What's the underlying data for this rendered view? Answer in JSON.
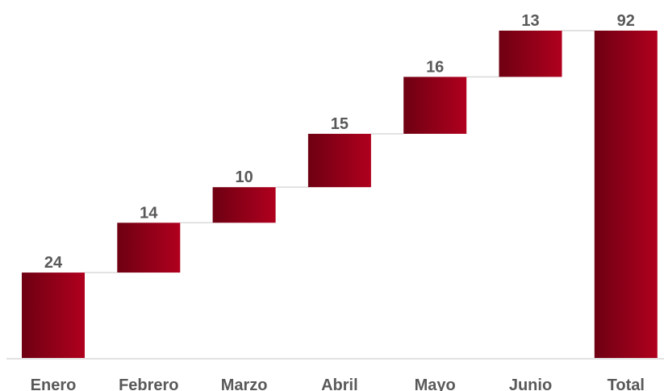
{
  "chart_data": {
    "type": "waterfall",
    "categories": [
      "Enero",
      "Febrero",
      "Marzo",
      "Abril",
      "Mayo",
      "Junio",
      "Total"
    ],
    "values": [
      24,
      14,
      10,
      15,
      16,
      13,
      92
    ],
    "total_index": 6,
    "ylim": [
      0,
      92
    ],
    "grid": false,
    "legend": "none",
    "colors": {
      "bar_dark": "#6e0012",
      "bar_light": "#b0001e",
      "connector": "#d9d9d9",
      "axis": "#d9d9d9",
      "label": "#595959"
    }
  }
}
